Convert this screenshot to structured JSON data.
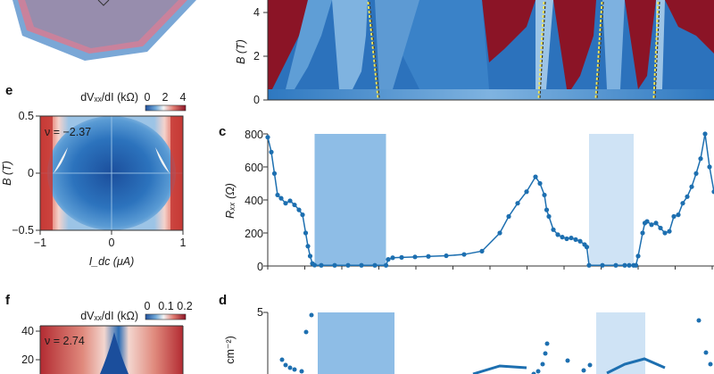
{
  "colors": {
    "red": "#8b1426",
    "blue": "#1f6fb8",
    "light_blue": "#9fc7e8",
    "marker": "#1d6fb0",
    "shade_dark": "#8ebde6",
    "shade_light": "#cfe3f5",
    "highlight": "#f1e75a"
  },
  "panels": {
    "e": {
      "letter": "e",
      "colorbar_label": "dVₓₓ/dI (kΩ)",
      "colorbar_ticks": [
        "0",
        "2",
        "4"
      ],
      "nu_label": "ν = −2.37",
      "y_axis_label": "B (T)",
      "y_ticks": [
        "0.5",
        "0",
        "−0.5"
      ],
      "x_axis_label": "I_dc (μA)",
      "x_ticks": [
        "−1",
        "0",
        "1"
      ]
    },
    "f": {
      "letter": "f",
      "colorbar_label": "dVₓₓ/dI (kΩ)",
      "colorbar_ticks": [
        "0",
        "0.1",
        "0.2"
      ],
      "nu_label": "ν = 2.74",
      "y_ticks": [
        "40",
        "20"
      ]
    },
    "b_top": {
      "y_axis_label": "B (T)",
      "y_ticks": [
        "4",
        "2",
        "0"
      ]
    },
    "c": {
      "letter": "c",
      "y_axis_label": "Rₓₓ (Ω)",
      "y_ticks": [
        "800",
        "600",
        "400",
        "200",
        "0"
      ]
    },
    "d": {
      "letter": "d",
      "y_tick": "5",
      "y_axis_label_fragment": "cm⁻²)"
    }
  },
  "chart_data": [
    {
      "type": "line",
      "panel": "c",
      "ylabel": "Rₓₓ (Ω)",
      "ylim": [
        0,
        800
      ],
      "xlim": [
        0,
        100
      ],
      "x_tick_labels_visible": false,
      "shaded_regions": [
        {
          "x": [
            10.5,
            26.5
          ],
          "shade": "dark"
        },
        {
          "x": [
            72,
            82
          ],
          "shade": "light"
        }
      ],
      "series": [
        {
          "x": [
            0,
            0.8,
            1.5,
            2.2,
            3,
            4,
            5,
            6,
            7,
            7.8,
            8.5,
            9,
            9.5,
            10,
            10.5,
            12,
            15,
            18,
            21,
            24,
            26.5,
            27,
            28,
            30,
            33,
            36,
            40,
            44,
            48,
            52,
            54,
            56,
            58,
            60,
            61,
            62,
            62.5,
            63,
            64,
            65,
            66,
            67,
            68,
            69,
            70,
            71,
            71.5,
            72,
            75,
            78,
            80,
            81,
            82,
            82.5,
            83,
            84,
            84.5,
            85,
            86,
            87,
            88,
            89,
            90,
            91,
            92,
            93,
            94,
            95,
            96,
            97,
            98,
            99,
            100
          ],
          "y": [
            780,
            690,
            560,
            430,
            410,
            380,
            395,
            370,
            340,
            310,
            200,
            120,
            60,
            15,
            5,
            4,
            4,
            4,
            4,
            4,
            4,
            40,
            50,
            52,
            55,
            58,
            62,
            70,
            90,
            200,
            300,
            380,
            450,
            540,
            500,
            430,
            340,
            300,
            220,
            190,
            175,
            165,
            170,
            160,
            150,
            130,
            115,
            4,
            4,
            4,
            4,
            4,
            4,
            4,
            60,
            200,
            260,
            270,
            250,
            260,
            230,
            200,
            210,
            300,
            310,
            380,
            420,
            480,
            560,
            650,
            800,
            600,
            450
          ]
        }
      ]
    },
    {
      "type": "heatmap",
      "panel": "e",
      "xlabel": "I_dc (μA)",
      "ylabel": "B (T)",
      "xlim": [
        -1,
        1
      ],
      "ylim": [
        -0.5,
        0.5
      ],
      "colorbar": {
        "label": "dVₓₓ/dI (kΩ)",
        "range": [
          0,
          4
        ]
      }
    },
    {
      "type": "heatmap",
      "panel": "b",
      "ylabel": "B (T)",
      "ylim": [
        0,
        5
      ]
    }
  ]
}
